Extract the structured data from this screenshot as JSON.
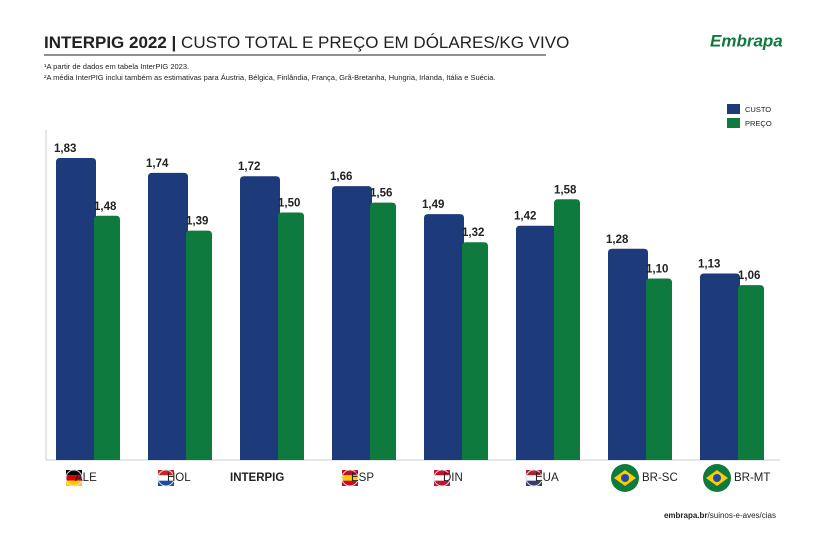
{
  "chart_data": {
    "type": "bar",
    "title": "INTERPIG 2022 |",
    "title_detail": "CUSTO TOTAL E PREÇO EM DÓLARES/KG VIVO",
    "notes": [
      "¹A partir de dados em tabela InterPIG 2023.",
      "²A média InterPIG inclui também as estimativas para Áustria, Bélgica, Finlândia, França, Grã-Bretanha, Hungria, Irlanda, Itália e Suécia."
    ],
    "logo": "Embrapa",
    "source_bold": "embrapa.br",
    "source_rest": "/suinos-e-aves/cias",
    "categories": [
      "ALE",
      "HOL",
      "INTERPIG",
      "ESP",
      "DIN",
      "EUA",
      "BR-SC",
      "BR-MT"
    ],
    "series": [
      {
        "name": "CUSTO",
        "color": "#1d3a7a",
        "values": [
          1.83,
          1.74,
          1.72,
          1.66,
          1.49,
          1.42,
          1.28,
          1.13
        ],
        "value_labels": [
          "1,83",
          "1,74",
          "1,72",
          "1,66",
          "1,49",
          "1,42",
          "1,28",
          "1,13"
        ]
      },
      {
        "name": "PREÇO",
        "color": "#0e7a3d",
        "values": [
          1.48,
          1.39,
          1.5,
          1.56,
          1.32,
          1.58,
          1.1,
          1.06
        ],
        "value_labels": [
          "1,48",
          "1,39",
          "1,50",
          "1,56",
          "1,32",
          "1,58",
          "1,10",
          "1,06"
        ]
      }
    ],
    "ylim": [
      0,
      2
    ],
    "legend": "top-right"
  }
}
